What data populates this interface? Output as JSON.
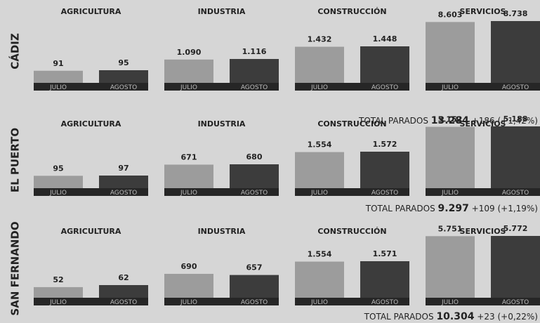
{
  "chart_data": {
    "type": "bar",
    "sectors": [
      "AGRICULTURA",
      "INDUSTRIA",
      "CONSTRUCCIÓN",
      "SERVICIOS"
    ],
    "categories": [
      "JULIO",
      "AGOSTO"
    ],
    "colors": [
      "#9c9c9c",
      "#3c3c3c"
    ],
    "cities": [
      {
        "name": "CÁDIZ",
        "values": [
          [
            91,
            95
          ],
          [
            1090,
            1116
          ],
          [
            1432,
            1448
          ],
          [
            8603,
            8738
          ]
        ],
        "value_labels": [
          [
            "91",
            "95"
          ],
          [
            "1.090",
            "1.116"
          ],
          [
            "1.432",
            "1.448"
          ],
          [
            "8.603",
            "8.738"
          ]
        ],
        "total_label": "TOTAL PARADOS",
        "total": "13.284",
        "change": "+186",
        "change_pct": "(+1,42%)"
      },
      {
        "name": "EL PUERTO",
        "values": [
          [
            95,
            97
          ],
          [
            671,
            680
          ],
          [
            1554,
            1572
          ],
          [
            5152,
            5188
          ]
        ],
        "value_labels": [
          [
            "95",
            "97"
          ],
          [
            "671",
            "680"
          ],
          [
            "1.554",
            "1.572"
          ],
          [
            "5.152",
            "5.188"
          ]
        ],
        "total_label": "TOTAL PARADOS",
        "total": "9.297",
        "change": "+109",
        "change_pct": "(+1,19%)"
      },
      {
        "name": "SAN FERNANDO",
        "values": [
          [
            52,
            62
          ],
          [
            690,
            657
          ],
          [
            1554,
            1571
          ],
          [
            5751,
            5772
          ]
        ],
        "value_labels": [
          [
            "52",
            "62"
          ],
          [
            "690",
            "657"
          ],
          [
            "1.554",
            "1.571"
          ],
          [
            "5.751",
            "5.772"
          ]
        ],
        "total_label": "TOTAL PARADOS",
        "total": "10.304",
        "change": "+23",
        "change_pct": "(+0,22%)"
      }
    ]
  }
}
